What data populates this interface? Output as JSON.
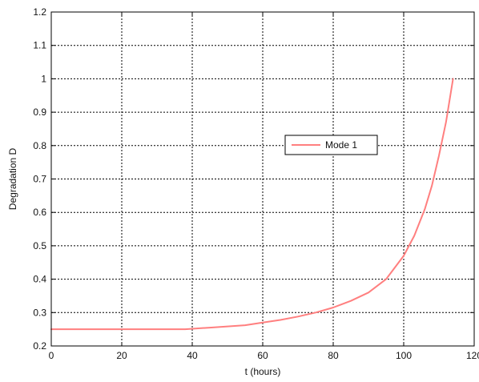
{
  "chart_data": {
    "type": "line",
    "xlabel": "t (hours)",
    "ylabel": "Degradation D",
    "xlim": [
      0,
      120
    ],
    "ylim": [
      0.2,
      1.2
    ],
    "xticks": [
      0,
      20,
      40,
      60,
      80,
      100,
      120
    ],
    "yticks": [
      0.2,
      0.3,
      0.4,
      0.5,
      0.6,
      0.7,
      0.8,
      0.9,
      1,
      1.1,
      1.2
    ],
    "xtick_labels": [
      "0",
      "20",
      "40",
      "60",
      "80",
      "100",
      "120"
    ],
    "ytick_labels": [
      "0.2",
      "0.3",
      "0.4",
      "0.5",
      "0.6",
      "0.7",
      "0.8",
      "0.9",
      "1",
      "1.1",
      "1.2"
    ],
    "grid": true,
    "legend_position": "center-right",
    "series": [
      {
        "name": "Mode 1",
        "color": "#ff7f7f",
        "x": [
          0,
          10,
          20,
          30,
          38,
          45,
          55,
          60,
          65,
          70,
          75,
          80,
          85,
          90,
          95,
          100,
          103,
          106,
          108,
          110,
          112,
          114
        ],
        "y": [
          0.25,
          0.25,
          0.25,
          0.25,
          0.25,
          0.255,
          0.262,
          0.27,
          0.278,
          0.288,
          0.3,
          0.315,
          0.335,
          0.36,
          0.4,
          0.47,
          0.53,
          0.61,
          0.68,
          0.77,
          0.87,
          1.0
        ]
      }
    ]
  }
}
